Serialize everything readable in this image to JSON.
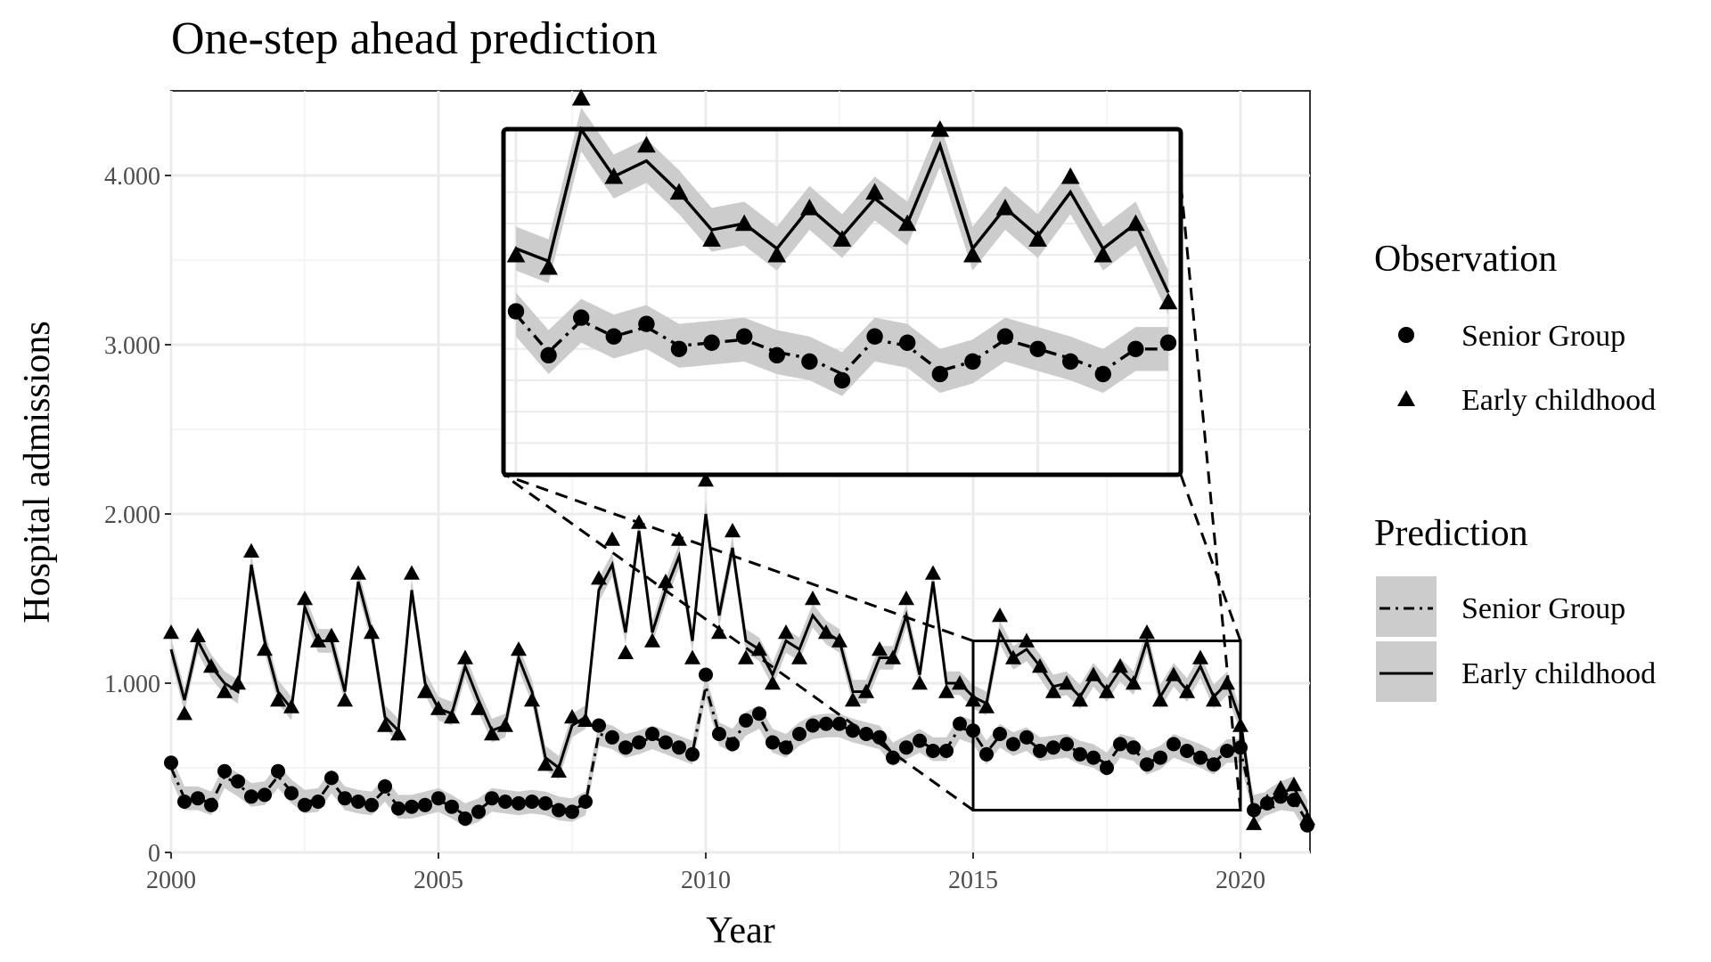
{
  "chart_data": {
    "type": "line",
    "title": "One-step ahead prediction",
    "xlabel": "Year",
    "ylabel": "Hospital admissions",
    "xlim": [
      2000,
      2021.3
    ],
    "ylim": [
      0,
      4500
    ],
    "x_ticks": [
      2000,
      2005,
      2010,
      2015,
      2020
    ],
    "x_tick_labels": [
      "2000",
      "2005",
      "2010",
      "2015",
      "2020"
    ],
    "y_ticks": [
      0,
      1000,
      2000,
      3000,
      4000
    ],
    "y_tick_labels": [
      "0",
      "1.000",
      "2.000",
      "3.000",
      "4.000"
    ],
    "grid": true,
    "legend_position": "right",
    "observation_legend": {
      "title": "Observation",
      "items": [
        {
          "label": "Senior Group",
          "marker": "circle"
        },
        {
          "label": "Early childhood",
          "marker": "triangle"
        }
      ]
    },
    "prediction_legend": {
      "title": "Prediction",
      "items": [
        {
          "label": "Senior Group",
          "line": "dashdot"
        },
        {
          "label": "Early childhood",
          "line": "solid"
        }
      ]
    },
    "zoom_inset": {
      "x_range": [
        2015,
        2020
      ],
      "y_range": [
        250,
        1250
      ]
    },
    "series": [
      {
        "name": "Early childhood",
        "x": [
          2000.0,
          2000.25,
          2000.5,
          2000.75,
          2001.0,
          2001.25,
          2001.5,
          2001.75,
          2002.0,
          2002.25,
          2002.5,
          2002.75,
          2003.0,
          2003.25,
          2003.5,
          2003.75,
          2004.0,
          2004.25,
          2004.5,
          2004.75,
          2005.0,
          2005.25,
          2005.5,
          2005.75,
          2006.0,
          2006.25,
          2006.5,
          2006.75,
          2007.0,
          2007.25,
          2007.5,
          2007.75,
          2008.0,
          2008.25,
          2008.5,
          2008.75,
          2009.0,
          2009.25,
          2009.5,
          2009.75,
          2010.0,
          2010.25,
          2010.5,
          2010.75,
          2011.0,
          2011.25,
          2011.5,
          2011.75,
          2012.0,
          2012.25,
          2012.5,
          2012.75,
          2013.0,
          2013.25,
          2013.5,
          2013.75,
          2014.0,
          2014.25,
          2014.5,
          2014.75,
          2015.0,
          2015.25,
          2015.5,
          2015.75,
          2016.0,
          2016.25,
          2016.5,
          2016.75,
          2017.0,
          2017.25,
          2017.5,
          2017.75,
          2018.0,
          2018.25,
          2018.5,
          2018.75,
          2019.0,
          2019.25,
          2019.5,
          2019.75,
          2020.0,
          2020.25,
          2020.5,
          2020.75,
          2021.0,
          2021.25
        ],
        "observed": [
          1300,
          820,
          1280,
          1100,
          950,
          1000,
          1780,
          1200,
          900,
          860,
          1500,
          1250,
          1280,
          900,
          1650,
          1300,
          750,
          700,
          1650,
          950,
          850,
          800,
          1150,
          850,
          700,
          750,
          1200,
          900,
          520,
          480,
          800,
          780,
          1620,
          1850,
          1180,
          1950,
          1250,
          1600,
          1850,
          1150,
          2200,
          1300,
          1900,
          1150,
          1200,
          1000,
          1300,
          1150,
          1500,
          1300,
          1250,
          900,
          950,
          1200,
          1150,
          1500,
          1000,
          1650,
          950,
          1000,
          900,
          860,
          1400,
          1150,
          1250,
          1100,
          950,
          1000,
          900,
          1050,
          950,
          1100,
          1000,
          1300,
          900,
          1050,
          950,
          1150,
          900,
          1000,
          750,
          170,
          300,
          380,
          400,
          200
        ],
        "predicted": [
          1200,
          900,
          1250,
          1100,
          1000,
          950,
          1700,
          1250,
          950,
          850,
          1450,
          1250,
          1250,
          950,
          1600,
          1300,
          800,
          720,
          1550,
          1000,
          850,
          820,
          1100,
          900,
          720,
          750,
          1150,
          950,
          560,
          500,
          750,
          800,
          1550,
          1700,
          1300,
          1900,
          1300,
          1550,
          1750,
          1250,
          2000,
          1400,
          1800,
          1250,
          1200,
          1050,
          1250,
          1200,
          1400,
          1300,
          1250,
          950,
          950,
          1150,
          1150,
          1400,
          1050,
          1600,
          1000,
          1000,
          920,
          880,
          1300,
          1150,
          1200,
          1100,
          980,
          1000,
          920,
          1050,
          960,
          1080,
          1000,
          1250,
          920,
          1050,
          960,
          1100,
          920,
          1000,
          780,
          220,
          300,
          350,
          380,
          240
        ]
      },
      {
        "name": "Senior Group",
        "x": [
          2000.0,
          2000.25,
          2000.5,
          2000.75,
          2001.0,
          2001.25,
          2001.5,
          2001.75,
          2002.0,
          2002.25,
          2002.5,
          2002.75,
          2003.0,
          2003.25,
          2003.5,
          2003.75,
          2004.0,
          2004.25,
          2004.5,
          2004.75,
          2005.0,
          2005.25,
          2005.5,
          2005.75,
          2006.0,
          2006.25,
          2006.5,
          2006.75,
          2007.0,
          2007.25,
          2007.5,
          2007.75,
          2008.0,
          2008.25,
          2008.5,
          2008.75,
          2009.0,
          2009.25,
          2009.5,
          2009.75,
          2010.0,
          2010.25,
          2010.5,
          2010.75,
          2011.0,
          2011.25,
          2011.5,
          2011.75,
          2012.0,
          2012.25,
          2012.5,
          2012.75,
          2013.0,
          2013.25,
          2013.5,
          2013.75,
          2014.0,
          2014.25,
          2014.5,
          2014.75,
          2015.0,
          2015.25,
          2015.5,
          2015.75,
          2016.0,
          2016.25,
          2016.5,
          2016.75,
          2017.0,
          2017.25,
          2017.5,
          2017.75,
          2018.0,
          2018.25,
          2018.5,
          2018.75,
          2019.0,
          2019.25,
          2019.5,
          2019.75,
          2020.0,
          2020.25,
          2020.5,
          2020.75,
          2021.0,
          2021.25
        ],
        "observed": [
          530,
          300,
          320,
          280,
          480,
          420,
          330,
          340,
          480,
          350,
          280,
          300,
          440,
          320,
          300,
          280,
          390,
          260,
          270,
          280,
          320,
          270,
          200,
          240,
          320,
          300,
          290,
          300,
          290,
          250,
          240,
          300,
          750,
          680,
          620,
          650,
          700,
          650,
          620,
          580,
          1050,
          700,
          640,
          780,
          820,
          650,
          620,
          700,
          750,
          760,
          760,
          720,
          700,
          680,
          560,
          620,
          660,
          600,
          600,
          760,
          720,
          580,
          700,
          640,
          680,
          600,
          620,
          640,
          580,
          560,
          500,
          640,
          620,
          520,
          560,
          640,
          600,
          560,
          520,
          600,
          620,
          250,
          290,
          330,
          310,
          160
        ],
        "predicted": [
          500,
          320,
          320,
          290,
          450,
          400,
          340,
          350,
          450,
          360,
          300,
          310,
          420,
          320,
          300,
          290,
          370,
          270,
          270,
          290,
          310,
          270,
          220,
          250,
          310,
          300,
          290,
          300,
          290,
          260,
          250,
          290,
          700,
          680,
          630,
          650,
          680,
          650,
          620,
          590,
          980,
          700,
          660,
          760,
          800,
          660,
          630,
          700,
          740,
          750,
          750,
          720,
          700,
          680,
          580,
          620,
          660,
          610,
          610,
          740,
          710,
          590,
          690,
          640,
          670,
          610,
          620,
          630,
          590,
          570,
          520,
          630,
          610,
          530,
          560,
          630,
          600,
          570,
          530,
          600,
          600,
          270,
          290,
          320,
          310,
          180
        ]
      }
    ]
  }
}
